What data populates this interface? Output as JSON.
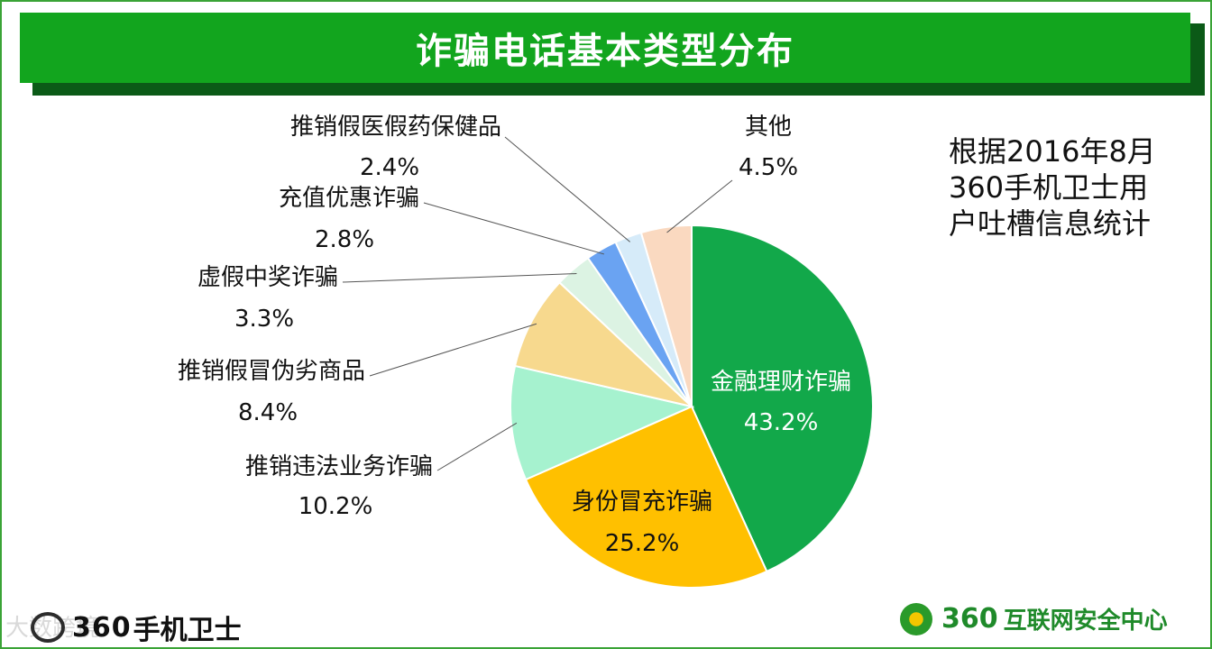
{
  "header": {
    "title": "诈骗电话基本类型分布"
  },
  "note": {
    "lines": [
      "根据2016年8月",
      "360手机卫士用",
      "户吐槽信息统计"
    ]
  },
  "chart_data": {
    "type": "pie",
    "title": "诈骗电话基本类型分布",
    "start_angle_deg": 0,
    "direction": "clockwise",
    "slices": [
      {
        "label": "金融理财诈骗",
        "value": 43.2,
        "display": "43.2%",
        "color": "#12a84a",
        "text_color": "#ffffff",
        "label_position": "inside"
      },
      {
        "label": "身份冒充诈骗",
        "value": 25.2,
        "display": "25.2%",
        "color": "#ffc000",
        "text_color": "#111111",
        "label_position": "inside"
      },
      {
        "label": "推销违法业务诈骗",
        "value": 10.2,
        "display": "10.2%",
        "color": "#a6f2cf",
        "text_color": "#111111",
        "label_position": "outside"
      },
      {
        "label": "推销假冒伪劣商品",
        "value": 8.4,
        "display": "8.4%",
        "color": "#f7d98e",
        "text_color": "#111111",
        "label_position": "outside"
      },
      {
        "label": "虚假中奖诈骗",
        "value": 3.3,
        "display": "3.3%",
        "color": "#dcf3e3",
        "text_color": "#111111",
        "label_position": "outside"
      },
      {
        "label": "充值优惠诈骗",
        "value": 2.8,
        "display": "2.8%",
        "color": "#6aa3f2",
        "text_color": "#111111",
        "label_position": "outside"
      },
      {
        "label": "推销假医假药保健品",
        "value": 2.4,
        "display": "2.4%",
        "color": "#d6ebf9",
        "text_color": "#111111",
        "label_position": "outside"
      },
      {
        "label": "其他",
        "value": 4.5,
        "display": "4.5%",
        "color": "#fad9c0",
        "text_color": "#111111",
        "label_position": "outside"
      }
    ]
  },
  "footer": {
    "left_brand": "360",
    "left_product": "手机卫士",
    "right_brand": "360",
    "right_org": "互联网安全中心",
    "watermark": "大数跨境"
  }
}
